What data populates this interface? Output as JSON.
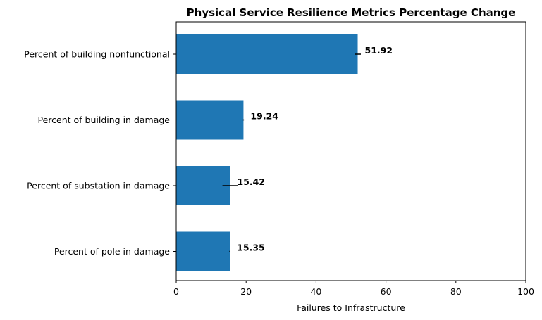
{
  "chart_data": {
    "type": "bar",
    "orientation": "horizontal",
    "title": "Physical Service Resilience Metrics Percentage Change",
    "xlabel": "Failures to Infrastructure",
    "ylabel": "",
    "xlim": [
      0,
      100
    ],
    "x_ticks": [
      0,
      20,
      40,
      60,
      80,
      100
    ],
    "categories": [
      "Percent of building nonfunctional",
      "Percent of building in damage",
      "Percent of substation in damage",
      "Percent of pole in damage"
    ],
    "values": [
      51.92,
      19.24,
      15.42,
      15.35
    ],
    "data_labels": [
      "51.92",
      "19.24",
      "15.42",
      "15.35"
    ],
    "error": [
      0.9,
      0.15,
      2.2,
      0.15
    ],
    "grid": false,
    "bar_color": "#1f77b4"
  }
}
